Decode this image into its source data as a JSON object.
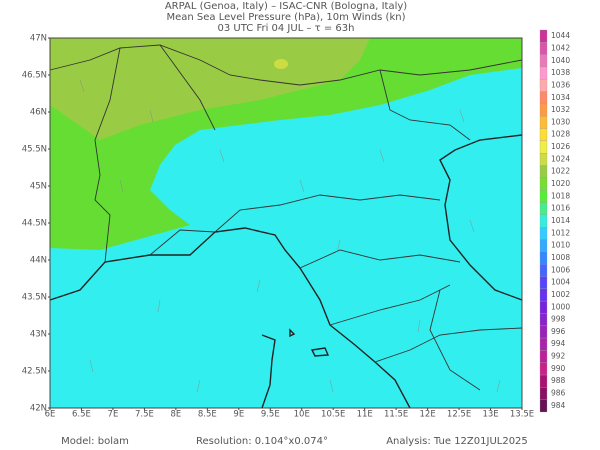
{
  "header": {
    "lines": [
      "ARPAL (Genoa, Italy)  –  ISAC-CNR (Bologna, Italy)",
      "Mean Sea Level Pressure (hPa), 10m Winds (kn)",
      "03 UTC Fri 04 JUL  –  τ = 63h"
    ]
  },
  "map": {
    "lat_labels": [
      "47N",
      "46.5N",
      "46N",
      "45.5N",
      "45N",
      "44.5N",
      "44N",
      "43.5N",
      "43N",
      "42.5N",
      "42N"
    ],
    "lon_labels": [
      "6E",
      "6.5E",
      "7E",
      "7.5E",
      "8E",
      "8.5E",
      "9E",
      "9.5E",
      "10E",
      "10.5E",
      "11E",
      "11.5E",
      "12E",
      "12.5E",
      "13E",
      "13.5E"
    ]
  },
  "colorbar": {
    "levels": [
      1044,
      1042,
      1040,
      1038,
      1036,
      1034,
      1032,
      1030,
      1028,
      1026,
      1024,
      1022,
      1020,
      1018,
      1016,
      1014,
      1012,
      1010,
      1008,
      1006,
      1004,
      1002,
      1000,
      998,
      996,
      994,
      992,
      990,
      988,
      986,
      984
    ],
    "colors": [
      "#cc3399",
      "#dd55aa",
      "#ee77bb",
      "#ff99cc",
      "#ffaaaa",
      "#ff8866",
      "#ff9944",
      "#ffbb33",
      "#ffdd33",
      "#eeee44",
      "#ccdd44",
      "#99cc44",
      "#77dd33",
      "#55ee33",
      "#44ee88",
      "#33eedd",
      "#33ccff",
      "#33aaff",
      "#3388ff",
      "#4466ff",
      "#5544ff",
      "#6633ee",
      "#7722dd",
      "#8822cc",
      "#9922bb",
      "#aa22aa",
      "#bb2299",
      "#cc2288",
      "#aa1177",
      "#881166",
      "#661155"
    ]
  },
  "footer": {
    "model": "Model:  bolam",
    "resolution": "Resolution: 0.104°x0.074°",
    "analysis": "Analysis: Tue 12Z01JUL2025"
  }
}
